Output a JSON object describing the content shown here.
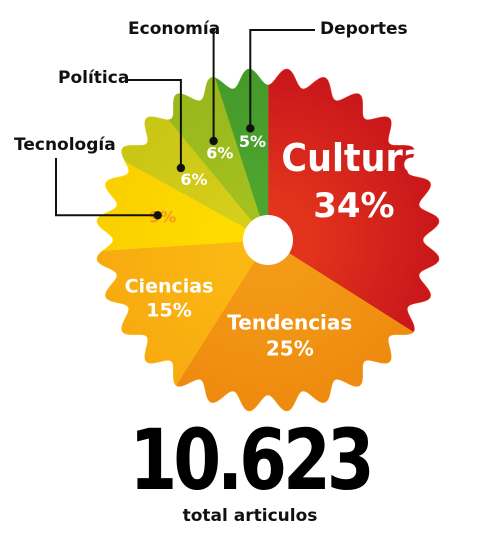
{
  "chart_data": {
    "type": "pie",
    "slices": [
      {
        "label": "Cultura",
        "value": 34,
        "text": "34%",
        "color": "#e2331c",
        "color_dark": "#c8161b"
      },
      {
        "label": "Tendencias",
        "value": 25,
        "text": "25%",
        "color": "#f39a16",
        "color_dark": "#ee8a0f"
      },
      {
        "label": "Ciencias",
        "value": 15,
        "text": "15%",
        "color": "#fbb813",
        "color_dark": "#f7aa0f"
      },
      {
        "label": "Tecnología",
        "value": 9,
        "text": "9%",
        "color": "#ffdc00",
        "color_dark": "#f9cf00"
      },
      {
        "label": "Política",
        "value": 6,
        "text": "6%",
        "color": "#d5ce1a",
        "color_dark": "#c9c515"
      },
      {
        "label": "Economía",
        "value": 6,
        "text": "6%",
        "color": "#a3c01f",
        "color_dark": "#98b71c"
      },
      {
        "label": "Deportes",
        "value": 5,
        "text": "5%",
        "color": "#4ea52e",
        "color_dark": "#44992a"
      }
    ],
    "start_angle_deg": 0,
    "direction": "clockwise"
  },
  "total": {
    "value": "10.623",
    "label": "total articulos"
  },
  "colors": {
    "label_on_slice": "#ffffff",
    "label_on_yellow": "#f39a16",
    "callout_text": "#111111",
    "callout_line": "#111111",
    "center_hole": "#ffffff"
  }
}
